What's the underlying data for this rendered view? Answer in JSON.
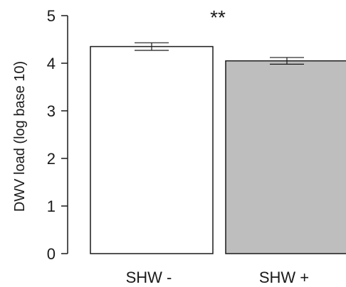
{
  "chart_data": {
    "type": "bar",
    "title": "",
    "xlabel": "",
    "ylabel": "DWV load (log base 10)",
    "ylim": [
      0,
      5
    ],
    "yticks": [
      0,
      1,
      2,
      3,
      4,
      5
    ],
    "categories": [
      "SHW -",
      "SHW +"
    ],
    "values": [
      4.35,
      4.05
    ],
    "errors": [
      0.08,
      0.07
    ],
    "bar_colors": [
      "#ffffff",
      "#bebebe"
    ],
    "bar_edge_color": "#1a1a1a",
    "annotation": "**",
    "grid": false
  }
}
